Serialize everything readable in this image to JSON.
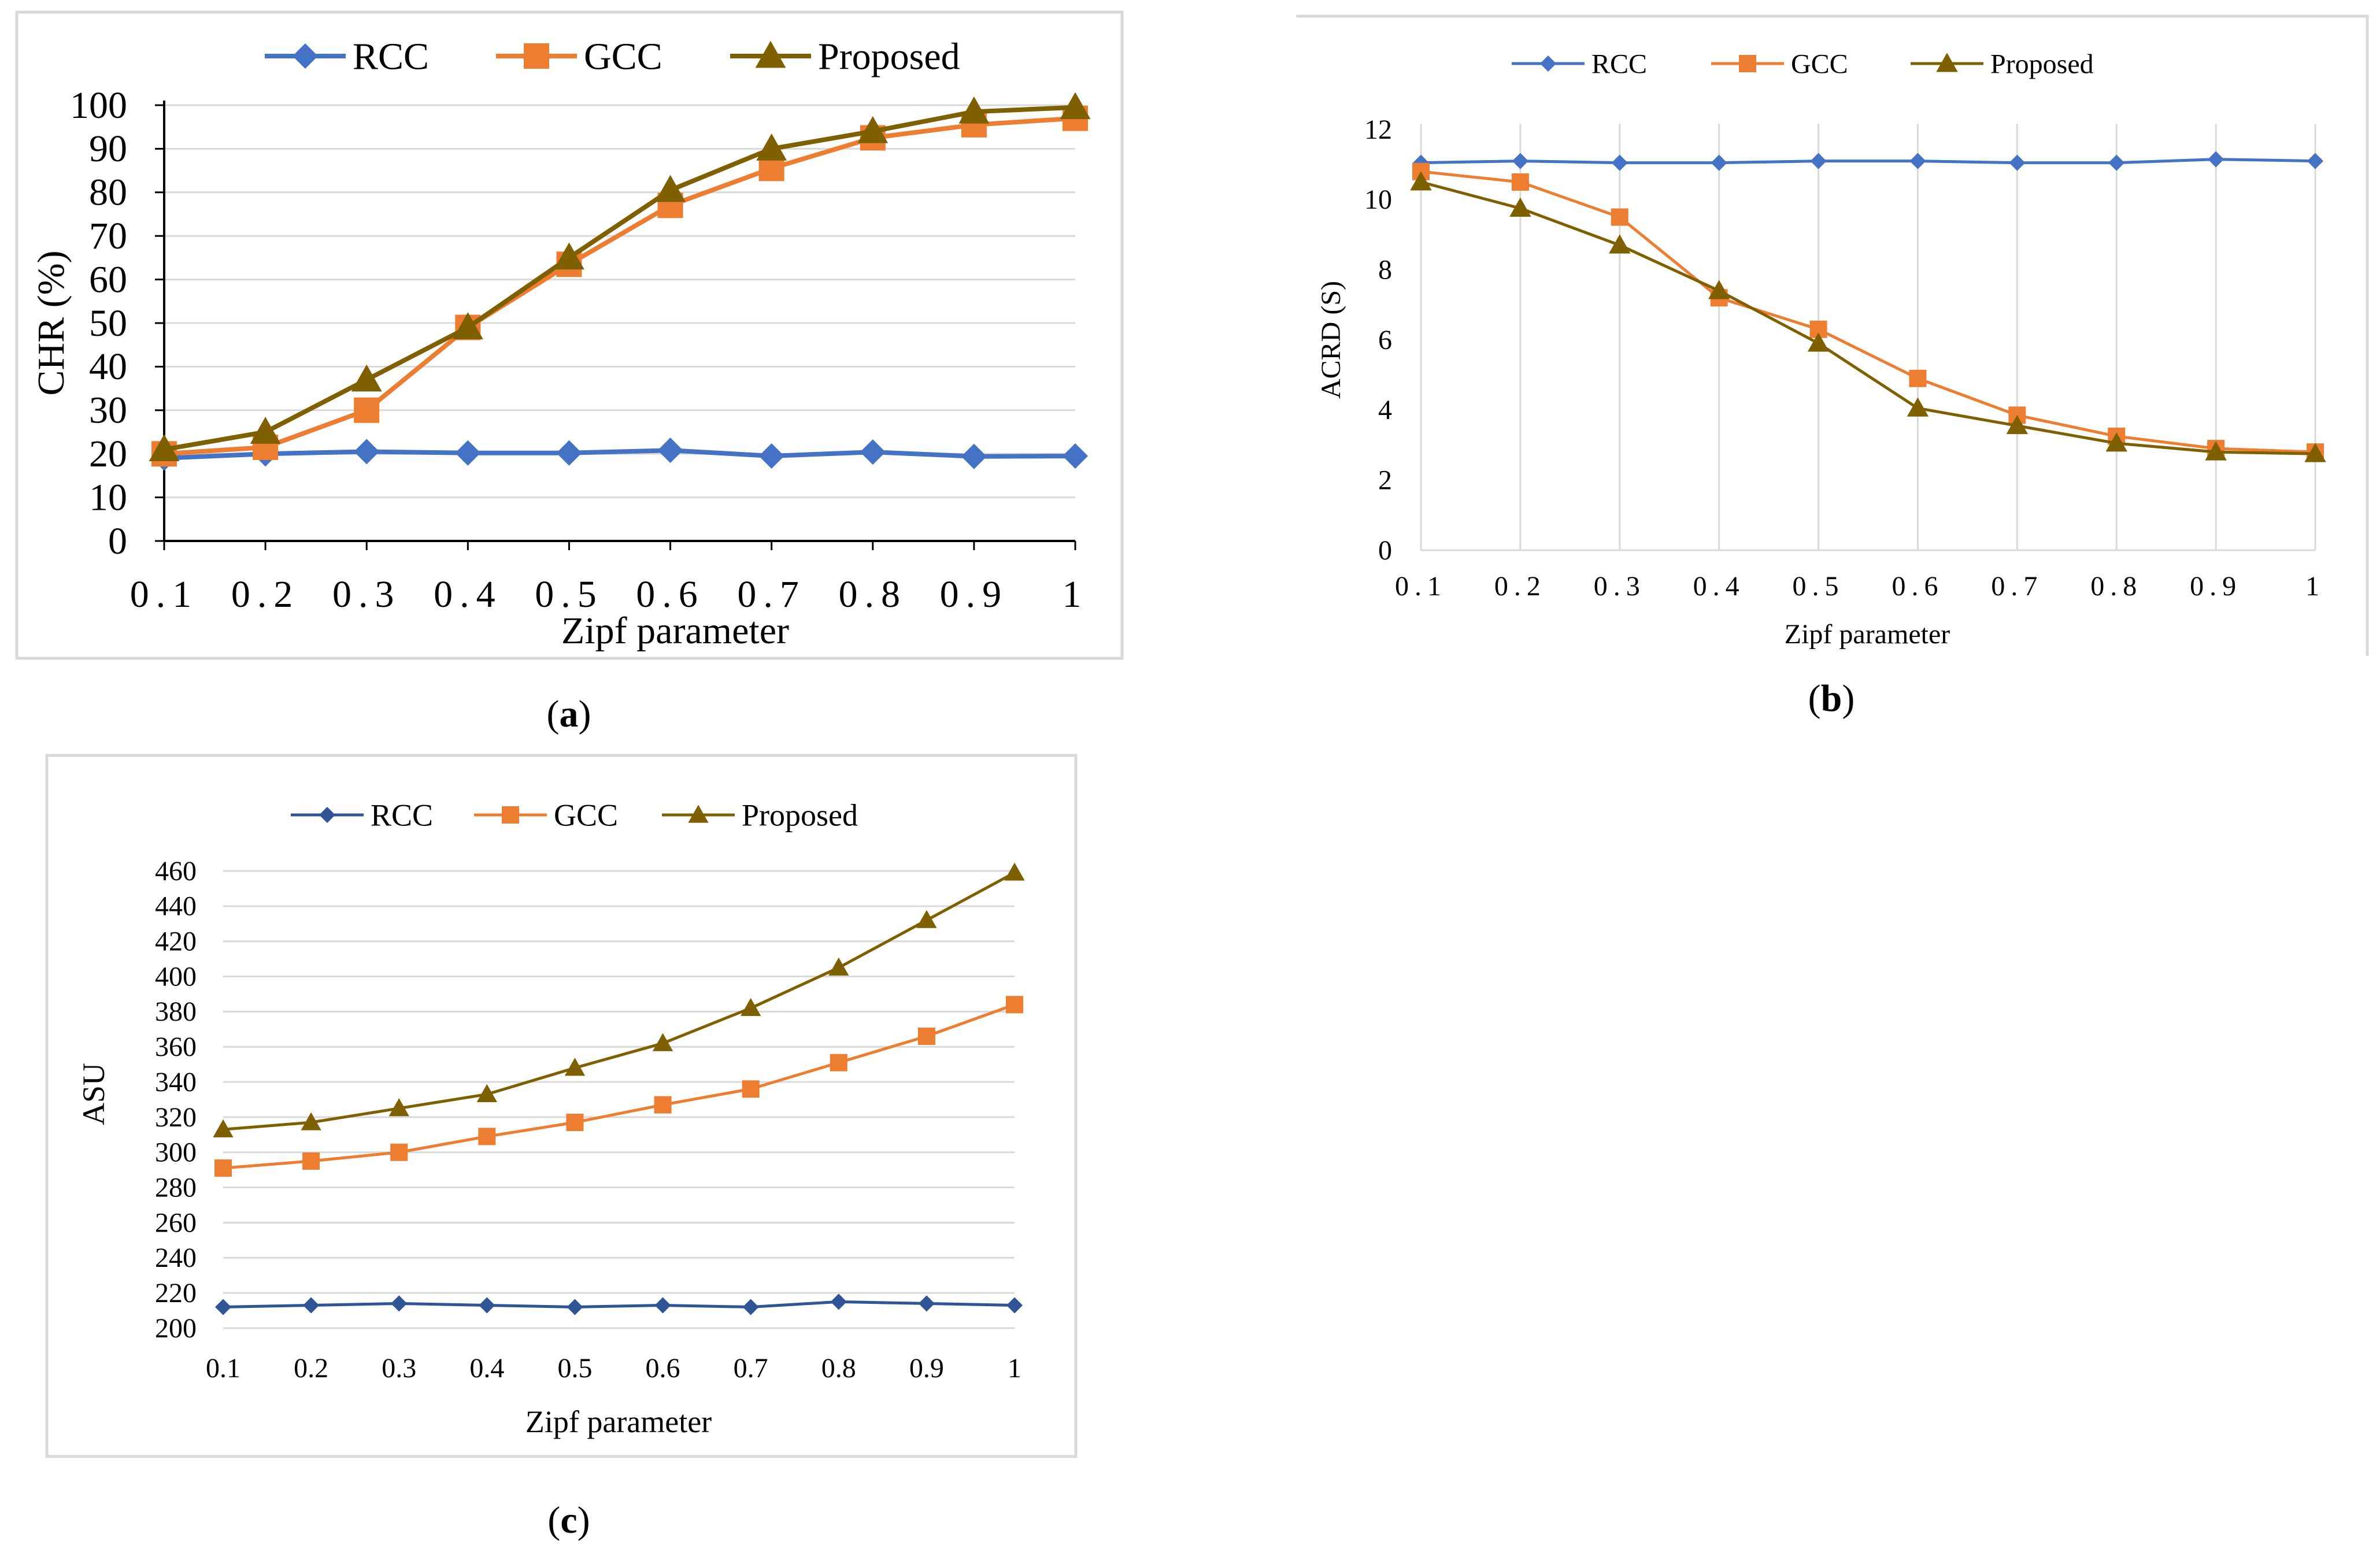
{
  "figure": {
    "panels": [
      {
        "label_prefix": "(",
        "label_letter": "a",
        "label_suffix": ")"
      },
      {
        "label_prefix": "(",
        "label_letter": "b",
        "label_suffix": ")"
      },
      {
        "label_prefix": "(",
        "label_letter": "c",
        "label_suffix": ")"
      }
    ]
  },
  "colors": {
    "rcc_a": "#4472C4",
    "gcc": "#ED7D31",
    "proposed": "#7F6000",
    "rcc_c": "#2F5597",
    "grid": "#D9D9D9",
    "frame": "#D9D9D9"
  },
  "chart_data": [
    {
      "type": "line",
      "panel": "a",
      "title": "",
      "xlabel": "Zipf parameter",
      "ylabel": "CHR (%)",
      "categories": [
        "0.1",
        "0.2",
        "0.3",
        "0.4",
        "0.5",
        "0.6",
        "0.7",
        "0.8",
        "0.9",
        "1"
      ],
      "x_tick_labels": [
        "0.1",
        "0.2",
        "0.3",
        "0.4",
        "0.5",
        "0.6",
        "0.7",
        "0.8",
        "0.9",
        "1"
      ],
      "ylim": [
        0,
        100
      ],
      "y_ticks": [
        "0",
        "10",
        "20",
        "30",
        "40",
        "50",
        "60",
        "70",
        "80",
        "90",
        "100"
      ],
      "grid": "horizontal",
      "legend": "top",
      "series": [
        {
          "name": "RCC",
          "marker": "diamond",
          "values": [
            19,
            20,
            20.5,
            20.2,
            20.2,
            20.8,
            19.5,
            20.4,
            19.4,
            19.5
          ]
        },
        {
          "name": "GCC",
          "marker": "square",
          "values": [
            20,
            21.5,
            30,
            49,
            63.5,
            77,
            85.5,
            92.5,
            95.5,
            97
          ]
        },
        {
          "name": "Proposed",
          "marker": "triangle",
          "values": [
            21,
            25,
            37,
            49,
            65,
            80.5,
            90,
            94,
            98.5,
            99.5
          ]
        }
      ]
    },
    {
      "type": "line",
      "panel": "b",
      "title": "",
      "xlabel": "Zipf parameter",
      "ylabel": "ACRD (S)",
      "categories": [
        "0.1",
        "0.2",
        "0.3",
        "0.4",
        "0.5",
        "0.6",
        "0.7",
        "0.8",
        "0.9",
        "1"
      ],
      "x_tick_labels": [
        "0.1",
        "0.2",
        "0.3",
        "0.4",
        "0.5",
        "0.6",
        "0.7",
        "0.8",
        "0.9",
        "1"
      ],
      "ylim": [
        0,
        12
      ],
      "y_ticks": [
        "0",
        "2",
        "4",
        "6",
        "8",
        "10",
        "12"
      ],
      "grid": "vertical",
      "legend": "top",
      "series": [
        {
          "name": "RCC",
          "marker": "diamond",
          "values": [
            11.05,
            11.1,
            11.05,
            11.05,
            11.1,
            11.1,
            11.05,
            11.05,
            11.15,
            11.1
          ]
        },
        {
          "name": "GCC",
          "marker": "square",
          "values": [
            10.8,
            10.5,
            9.5,
            7.2,
            6.3,
            4.9,
            3.85,
            3.25,
            2.9,
            2.8
          ]
        },
        {
          "name": "Proposed",
          "marker": "triangle",
          "values": [
            10.5,
            9.75,
            8.7,
            7.4,
            5.9,
            4.05,
            3.55,
            3.05,
            2.8,
            2.75
          ]
        }
      ]
    },
    {
      "type": "line",
      "panel": "c",
      "title": "",
      "xlabel": "Zipf parameter",
      "ylabel": "ASU",
      "categories": [
        "0.1",
        "0.2",
        "0.3",
        "0.4",
        "0.5",
        "0.6",
        "0.7",
        "0.8",
        "0.9",
        "1"
      ],
      "x_tick_labels": [
        "0.1",
        "0.2",
        "0.3",
        "0.4",
        "0.5",
        "0.6",
        "0.7",
        "0.8",
        "0.9",
        "1"
      ],
      "ylim": [
        200,
        460
      ],
      "y_ticks": [
        "200",
        "220",
        "240",
        "260",
        "280",
        "300",
        "320",
        "340",
        "360",
        "380",
        "400",
        "420",
        "440",
        "460"
      ],
      "grid": "horizontal",
      "legend": "top",
      "series": [
        {
          "name": "RCC",
          "marker": "diamond",
          "values": [
            212,
            213,
            214,
            213,
            212,
            213,
            212,
            215,
            214,
            213
          ]
        },
        {
          "name": "GCC",
          "marker": "square",
          "values": [
            291,
            295,
            300,
            309,
            317,
            327,
            336,
            351,
            366,
            384
          ]
        },
        {
          "name": "Proposed",
          "marker": "triangle",
          "values": [
            313,
            317,
            325,
            333,
            348,
            362,
            382,
            405,
            432,
            459
          ]
        }
      ]
    }
  ]
}
